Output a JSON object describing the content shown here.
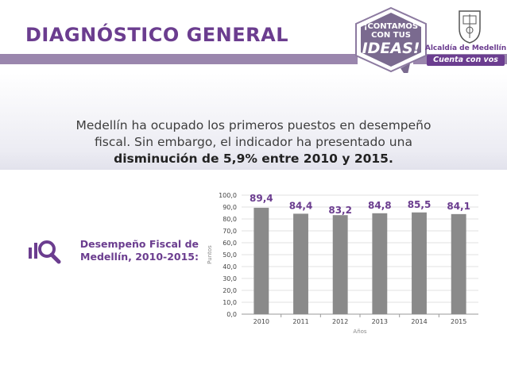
{
  "header": {
    "title": "DIAGNÓSTICO GENERAL",
    "badge_line1": "¡CONTAMOS",
    "badge_line2": "CON TUS",
    "badge_line3": "IDEAS!",
    "alcaldia_name": "Alcaldía de Medellín",
    "alcaldia_slogan": "Cuenta con vos"
  },
  "band": {
    "text_line1": "Medellín ha ocupado los primeros puestos en desempeño",
    "text_line2": "fiscal. Sin embargo, el indicador ha presentado una",
    "text_bold": "disminución de 5,9% entre 2010 y 2015."
  },
  "side": {
    "label_line1": "Desempeño Fiscal de",
    "label_line2": "Medellín, 2010-2015:",
    "icon": "search-chart-icon"
  },
  "colors": {
    "accent": "#6b3d8f",
    "bar": "#8a8a8a"
  },
  "chart_data": {
    "type": "bar",
    "categories": [
      "2010",
      "2011",
      "2012",
      "2013",
      "2014",
      "2015"
    ],
    "values": [
      89.4,
      84.4,
      83.2,
      84.8,
      85.5,
      84.1
    ],
    "value_labels": [
      "89,4",
      "84,4",
      "83,2",
      "84,8",
      "85,5",
      "84,1"
    ],
    "xlabel": "Años",
    "ylabel": "Puntos",
    "ylim": [
      0,
      100
    ],
    "yticks": [
      "0,0",
      "10,0",
      "20,0",
      "30,0",
      "40,0",
      "50,0",
      "60,0",
      "70,0",
      "80,0",
      "90,0",
      "100,0"
    ],
    "grid": true
  }
}
